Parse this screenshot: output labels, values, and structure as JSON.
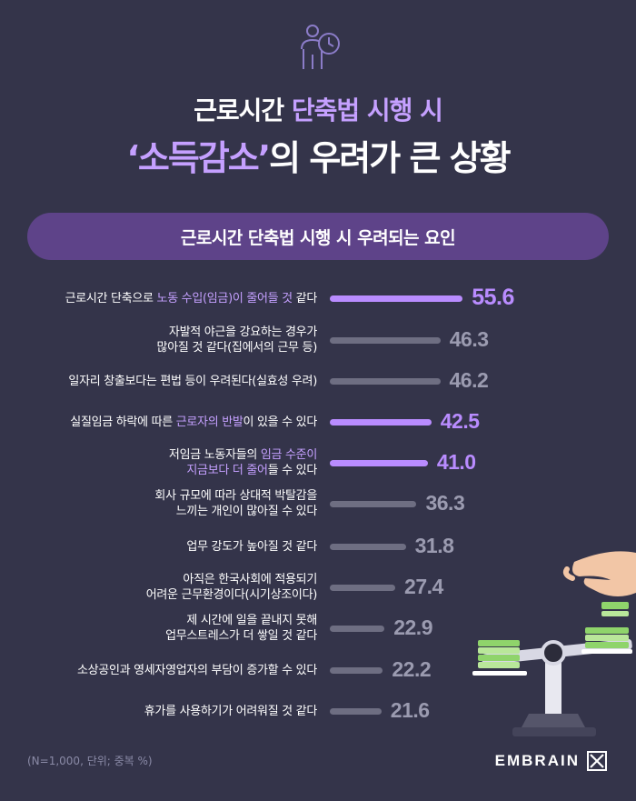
{
  "title": {
    "line1_plain": "근로시간 ",
    "line1_accent": "단축법 시행 시",
    "line2_accent": "‘소득감소’",
    "line2_plain": "의 우려가 큰 상황"
  },
  "subtitle": "근로시간 단축법 시행 시 우려되는 요인",
  "colors": {
    "background": "#34344a",
    "accent": "#c5a0ff",
    "bar_highlight": "#b98cff",
    "bar_gray": "#6e6e82",
    "value_gray": "#9b9bb0",
    "pill": "#5e4389"
  },
  "chart_data": {
    "type": "bar",
    "orientation": "horizontal",
    "unit": "%",
    "categories": [
      "근로시간 단축으로 노동 수입(임금)이 줄어들 것 같다",
      "자발적 야근을 강요하는 경우가 많아질 것 같다(집에서의 근무 등)",
      "일자리 창출보다는 편법 등이 우려된다(실효성 우려)",
      "실질임금 하락에 따른 근로자의 반발이 있을 수 있다",
      "저임금 노동자들의 임금 수준이 지금보다 더 줄어들 수 있다",
      "회사 규모에 따라 상대적 박탈감을 느끼는 개인이 많아질 수 있다",
      "업무 강도가 높아질 것 같다",
      "아직은 한국사회에 적용되기 어려운 근무환경이다(시기상조이다)",
      "제 시간에 일을 끝내지 못해 업무스트레스가 더 쌓일 것 같다",
      "소상공인과 영세자영업자의 부담이 증가할 수 있다",
      "휴가를 사용하기가 어려워질 것 같다"
    ],
    "values": [
      55.6,
      46.3,
      46.2,
      42.5,
      41.0,
      36.3,
      31.8,
      27.4,
      22.9,
      22.2,
      21.6
    ],
    "value_labels": [
      "55.6",
      "46.3",
      "46.2",
      "42.5",
      "41.0",
      "36.3",
      "31.8",
      "27.4",
      "22.9",
      "22.2",
      "21.6"
    ],
    "highlighted": [
      true,
      false,
      false,
      true,
      true,
      false,
      false,
      false,
      false,
      false,
      false
    ],
    "label_lines": [
      [
        [
          {
            "t": "근로시간 단축으로 ",
            "h": false
          },
          {
            "t": "노동 수입(임금)이 줄어들 것",
            "h": true
          },
          {
            "t": " 같다",
            "h": false
          }
        ]
      ],
      [
        [
          {
            "t": "자발적 야근을 강요하는 경우가",
            "h": false
          }
        ],
        [
          {
            "t": "많아질 것 같다(집에서의 근무 등)",
            "h": false
          }
        ]
      ],
      [
        [
          {
            "t": "일자리 창출보다는 편법 등이 우려된다(실효성 우려)",
            "h": false
          }
        ]
      ],
      [
        [
          {
            "t": "실질임금 하락에 따른 ",
            "h": false
          },
          {
            "t": "근로자의 반발",
            "h": true
          },
          {
            "t": "이 있을 수 있다",
            "h": false
          }
        ]
      ],
      [
        [
          {
            "t": "저임금 노동자들의 ",
            "h": false
          },
          {
            "t": "임금 수준이",
            "h": true
          }
        ],
        [
          {
            "t": "지금보다 더 줄어",
            "h": true
          },
          {
            "t": "들 수 있다",
            "h": false
          }
        ]
      ],
      [
        [
          {
            "t": "회사 규모에 따라 상대적 박탈감을",
            "h": false
          }
        ],
        [
          {
            "t": "느끼는 개인이 많아질 수 있다",
            "h": false
          }
        ]
      ],
      [
        [
          {
            "t": "업무 강도가 높아질 것 같다",
            "h": false
          }
        ]
      ],
      [
        [
          {
            "t": "아직은 한국사회에 적용되기",
            "h": false
          }
        ],
        [
          {
            "t": "어려운 근무환경이다(시기상조이다)",
            "h": false
          }
        ]
      ],
      [
        [
          {
            "t": "제 시간에 일을 끝내지 못해",
            "h": false
          }
        ],
        [
          {
            "t": "업무스트레스가 더 쌓일 것 같다",
            "h": false
          }
        ]
      ],
      [
        [
          {
            "t": "소상공인과 영세자영업자의 부담이 증가할 수 있다",
            "h": false
          }
        ]
      ],
      [
        [
          {
            "t": "휴가를 사용하기가 어려워질 것 같다",
            "h": false
          }
        ]
      ]
    ]
  },
  "footnote": "(N=1,000, 단위; 중복 %)",
  "brand": "EMBRAIN",
  "icons": {
    "header": "person-clock-icon",
    "brand": "embrain-logo-icon",
    "illustration": "hand-scale-money-icon"
  }
}
